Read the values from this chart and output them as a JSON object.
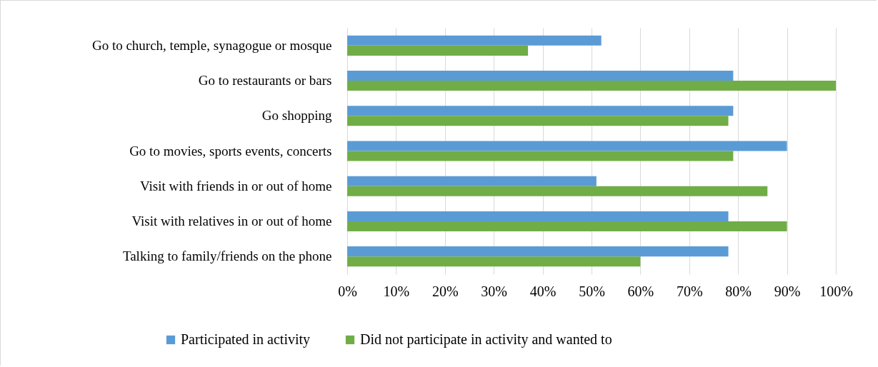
{
  "chart_data": {
    "type": "bar",
    "orientation": "horizontal",
    "categories": [
      "Go to church, temple, synagogue or mosque",
      "Go to restaurants or bars",
      "Go shopping",
      "Go to movies, sports events, concerts",
      "Visit with friends in or out of home",
      "Visit with relatives in or out of home",
      "Talking to family/friends on the phone"
    ],
    "series": [
      {
        "name": "Participated in activity",
        "color": "#5b9bd5",
        "values": [
          52,
          79,
          79,
          90,
          51,
          78,
          78
        ]
      },
      {
        "name": "Did not participate in activity and wanted to",
        "color": "#70ad47",
        "values": [
          37,
          100,
          78,
          79,
          86,
          90,
          60
        ]
      }
    ],
    "xlim": [
      0,
      100
    ],
    "xticks": [
      {
        "value": 0,
        "label": "0%"
      },
      {
        "value": 10,
        "label": "10%"
      },
      {
        "value": 20,
        "label": "20%"
      },
      {
        "value": 30,
        "label": "30%"
      },
      {
        "value": 40,
        "label": "40%"
      },
      {
        "value": 50,
        "label": "50%"
      },
      {
        "value": 60,
        "label": "60%"
      },
      {
        "value": 70,
        "label": "70%"
      },
      {
        "value": 80,
        "label": "80%"
      },
      {
        "value": 90,
        "label": "90%"
      },
      {
        "value": 100,
        "label": "100%"
      }
    ],
    "grid": "x",
    "legend": "bottom"
  }
}
